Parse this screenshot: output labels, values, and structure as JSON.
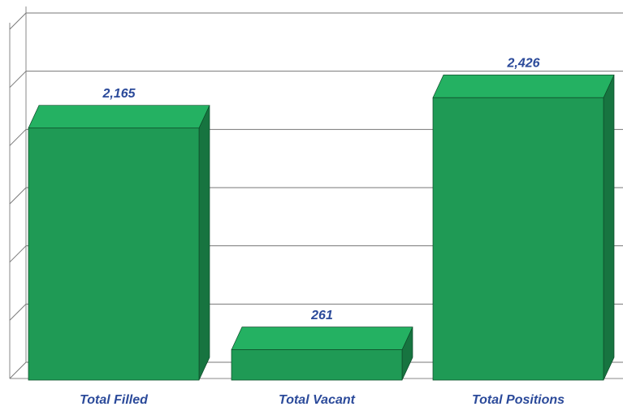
{
  "chart_data": {
    "type": "bar",
    "categories": [
      "Total Filled",
      "Total Vacant",
      "Total Positions"
    ],
    "values": [
      2165,
      261,
      2426
    ],
    "value_labels": [
      "2,165",
      "261",
      "2,426"
    ],
    "color": "#1f9a55",
    "ylim": [
      0,
      3000
    ],
    "yticks": [
      0,
      500,
      1000,
      1500,
      2000,
      2500,
      3000
    ],
    "grid": true
  }
}
